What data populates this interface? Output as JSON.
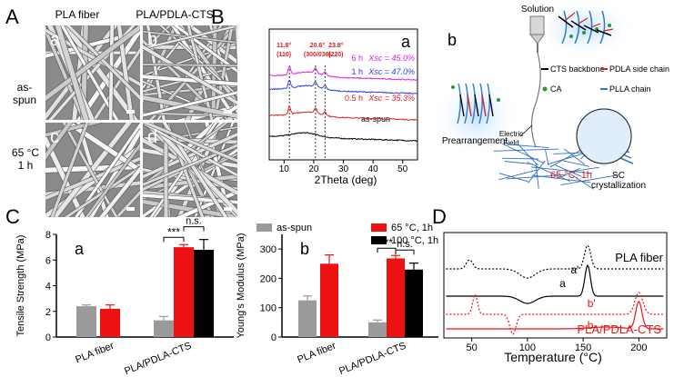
{
  "panels": {
    "A": "A",
    "B": "B",
    "C": "C",
    "D": "D",
    "a": "a",
    "b": "b"
  },
  "panel_a": {
    "col_labels": [
      "PLA fiber",
      "PLA/PDLA-CTS"
    ],
    "row_labels": [
      [
        "as-",
        "spun"
      ],
      [
        "65 °C",
        "1 h"
      ]
    ],
    "sub_labels": [
      "a",
      "b",
      "c",
      "d"
    ],
    "bg_color": "#8a8a8a"
  },
  "panel_b_scheme": {
    "solution": "Solution",
    "electric_field": [
      "Electric",
      "Field"
    ],
    "prearrangement": "Prearrangement",
    "condition": "65 °C, 1h",
    "sc": [
      "SC",
      "crystallization"
    ],
    "legend": [
      {
        "label": "CTS backbone",
        "color": "#000000"
      },
      {
        "label": "PDLA side chain",
        "color": "#d42020"
      },
      {
        "label": "CA",
        "color": "#2a9a3a"
      },
      {
        "label": "PLLA chain",
        "color": "#2f78c8"
      }
    ]
  },
  "chart_data": [
    {
      "type": "line",
      "panel": "B-a",
      "xlabel": "2Theta (deg)",
      "ylabel": "",
      "xlim": [
        5,
        55
      ],
      "xticks": [
        10,
        20,
        30,
        40,
        50
      ],
      "peak_labels": [
        {
          "x": 11.8,
          "label": [
            "11.8°",
            "(110)"
          ]
        },
        {
          "x": 20.6,
          "label": [
            "20.6°",
            "(300/030)"
          ]
        },
        {
          "x": 23.8,
          "label": [
            "23.8°",
            "(220)"
          ]
        }
      ],
      "series": [
        {
          "name": "6 h",
          "xsc": "Xsc = 45.0%",
          "color": "#e020e0",
          "offset": 3
        },
        {
          "name": "1 h",
          "xsc": "Xsc = 47.0%",
          "color": "#3040e0",
          "offset": 2
        },
        {
          "name": "0.5 h",
          "xsc": "Xsc = 35.3%",
          "color": "#e02020",
          "offset": 1
        },
        {
          "name": "as-spun",
          "xsc": "",
          "color": "#000000",
          "offset": 0
        }
      ]
    },
    {
      "type": "bar",
      "panel": "C-a",
      "ylabel": "Tensile Strength (MPa)",
      "ylim": [
        0,
        8
      ],
      "yticks": [
        0,
        2,
        4,
        6,
        8
      ],
      "categories": [
        "PLA fiber",
        "PLA/PDLA-CTS"
      ],
      "series": [
        {
          "name": "as-spun",
          "color": "#9a9a9a",
          "values": [
            2.4,
            1.3
          ],
          "errors": [
            0.1,
            0.3
          ]
        },
        {
          "name": "65 °C, 1h",
          "color": "#ee1111",
          "values": [
            2.2,
            7.0
          ],
          "errors": [
            0.3,
            0.2
          ]
        },
        {
          "name": "100 °C, 1h",
          "color": "#000000",
          "values": [
            null,
            6.8
          ],
          "errors": [
            null,
            0.8
          ]
        }
      ],
      "significance": [
        {
          "label": "***"
        },
        {
          "label": "n.s."
        }
      ]
    },
    {
      "type": "bar",
      "panel": "C-b",
      "ylabel": "Young's Modulus (MPa)",
      "ylim": [
        0,
        350
      ],
      "yticks": [
        0,
        100,
        200,
        300
      ],
      "categories": [
        "PLA fiber",
        "PLA/PDLA-CTS"
      ],
      "series": [
        {
          "name": "as-spun",
          "color": "#9a9a9a",
          "values": [
            125,
            50
          ],
          "errors": [
            15,
            8
          ]
        },
        {
          "name": "65 °C, 1h",
          "color": "#ee1111",
          "values": [
            250,
            268
          ],
          "errors": [
            30,
            10
          ]
        },
        {
          "name": "100 °C, 1h",
          "color": "#000000",
          "values": [
            null,
            230
          ],
          "errors": [
            null,
            22
          ]
        }
      ],
      "significance": [
        {
          "label": "***"
        },
        {
          "label": "n.s."
        }
      ]
    },
    {
      "type": "line",
      "panel": "D",
      "xlabel": "Temperature (°C)",
      "xlim": [
        25,
        225
      ],
      "xticks": [
        50,
        100,
        150,
        200
      ],
      "series": [
        {
          "name": "a'",
          "color": "#000000",
          "dash": true
        },
        {
          "name": "a",
          "color": "#000000",
          "dash": false
        },
        {
          "name": "b'",
          "color": "#ee1111",
          "dash": true
        },
        {
          "name": "b",
          "color": "#ee1111",
          "dash": false
        }
      ],
      "group_labels": [
        {
          "label": "PLA fiber",
          "color": "#000000"
        },
        {
          "label": "PLA/PDLA-CTS",
          "color": "#ee1111"
        }
      ]
    }
  ]
}
